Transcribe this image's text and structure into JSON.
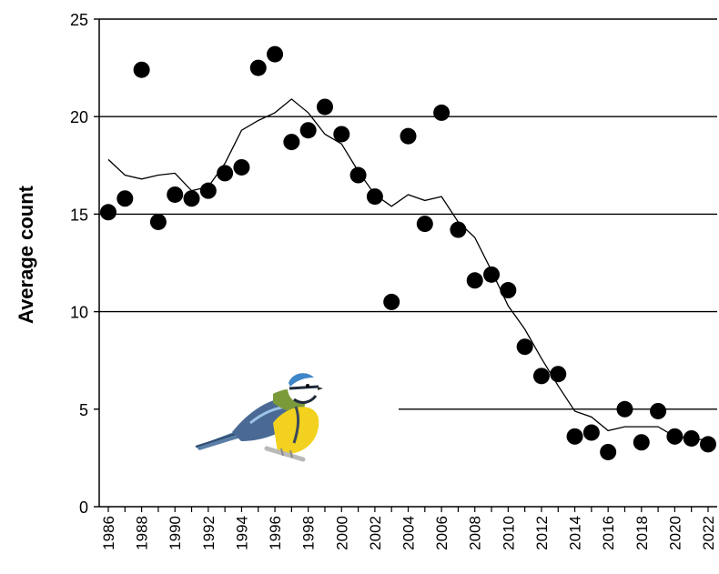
{
  "chart_data": {
    "type": "scatter",
    "title": "",
    "xlabel": "",
    "ylabel": "Average count",
    "xlim": [
      1986,
      2022
    ],
    "ylim": [
      0,
      25
    ],
    "yticks": [
      0,
      5,
      10,
      15,
      20,
      25
    ],
    "xtick_labels": [
      "1986",
      "1988",
      "1990",
      "1992",
      "1994",
      "1996",
      "1998",
      "2000",
      "2002",
      "2004",
      "2006",
      "2008",
      "2010",
      "2012",
      "2014",
      "2016",
      "2018",
      "2020",
      "2022"
    ],
    "grid": "horizontal",
    "legend": "none",
    "colors": {
      "points": "#000000",
      "trend": "#000000",
      "grid": "#000000"
    },
    "illustration": "blue-tit-bird",
    "series": [
      {
        "kind": "points",
        "x": [
          1986,
          1987,
          1988,
          1989,
          1990,
          1991,
          1992,
          1993,
          1994,
          1995,
          1996,
          1997,
          1998,
          1999,
          2000,
          2001,
          2002,
          2003,
          2004,
          2005,
          2006,
          2007,
          2008,
          2009,
          2010,
          2011,
          2012,
          2013,
          2014,
          2015,
          2016,
          2017,
          2018,
          2019,
          2020,
          2021,
          2022
        ],
        "y": [
          15.1,
          15.8,
          22.4,
          14.6,
          16.0,
          15.8,
          16.2,
          17.1,
          17.4,
          22.5,
          23.2,
          18.7,
          19.3,
          20.5,
          19.1,
          17.0,
          15.9,
          10.5,
          19.0,
          14.5,
          20.2,
          14.2,
          11.6,
          11.9,
          11.1,
          8.2,
          6.7,
          6.8,
          3.6,
          3.8,
          2.8,
          5.0,
          3.3,
          4.9,
          3.6,
          3.5,
          3.2
        ]
      },
      {
        "kind": "trend-line",
        "x": [
          1986,
          1987,
          1988,
          1989,
          1990,
          1991,
          1992,
          1993,
          1994,
          1995,
          1996,
          1997,
          1998,
          1999,
          2000,
          2001,
          2002,
          2003,
          2004,
          2005,
          2006,
          2007,
          2008,
          2009,
          2010,
          2011,
          2012,
          2013,
          2014,
          2015,
          2016,
          2017,
          2018,
          2019,
          2020,
          2021,
          2022
        ],
        "y": [
          17.8,
          17.0,
          16.8,
          17.0,
          17.1,
          16.2,
          16.4,
          17.6,
          19.3,
          19.8,
          20.2,
          20.9,
          20.2,
          19.1,
          18.6,
          17.2,
          16.0,
          15.4,
          16.0,
          15.7,
          15.9,
          14.6,
          13.8,
          12.1,
          10.3,
          9.1,
          7.6,
          6.2,
          4.9,
          4.6,
          3.9,
          4.1,
          4.1,
          4.1,
          3.6,
          3.5,
          3.4
        ]
      }
    ]
  }
}
